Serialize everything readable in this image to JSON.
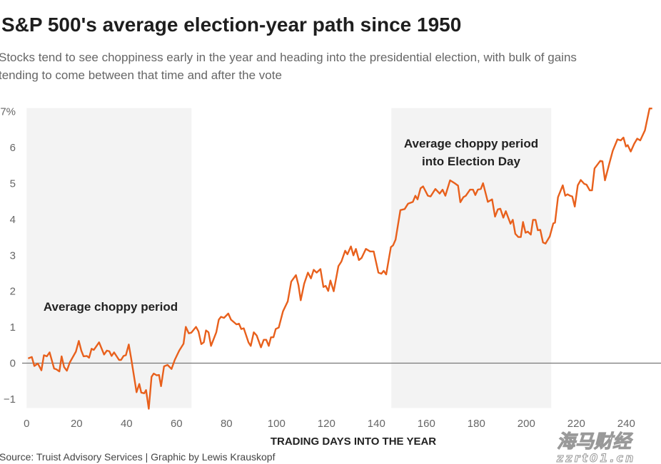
{
  "header": {
    "title": "S&P 500's average election-year path since 1950",
    "subtitle_lines": [
      "Stocks tend to see choppiness early in the year and heading into the presidential election, with bulk of gains",
      "tending to come between that time and after the vote"
    ]
  },
  "footer": {
    "source": "Source: Truist Advisory Services | Graphic by Lewis Krauskopf"
  },
  "watermark": {
    "text": "海马财经",
    "url": "zzrt01.cn"
  },
  "colors": {
    "line": "#e8601c",
    "shade": "#f3f3f3",
    "zero_line": "#777777"
  },
  "chart_data": {
    "type": "line",
    "title": "S&P 500's average election-year path since 1950",
    "xlabel": "TRADING DAYS INTO THE YEAR",
    "ylabel": "",
    "xlim": [
      0,
      252
    ],
    "ylim": [
      -1.25,
      7.1
    ],
    "x_ticks": [
      0,
      20,
      40,
      60,
      80,
      100,
      120,
      140,
      160,
      180,
      200,
      220,
      240
    ],
    "y_ticks": [
      -1,
      0,
      1,
      2,
      3,
      4,
      5,
      6,
      7
    ],
    "y_tick_labels": [
      "−1",
      "0",
      "1",
      "2",
      "3",
      "4",
      "5",
      "6",
      "7%"
    ],
    "grid": false,
    "shaded_regions": [
      {
        "x_start": 0,
        "x_end": 66,
        "label": "Average choppy period"
      },
      {
        "x_start": 146,
        "x_end": 210,
        "label_lines": [
          "Average choppy period",
          "into Election Day"
        ]
      }
    ],
    "x": [
      0.6,
      2.1,
      3.1,
      4.5,
      5.9,
      6.9,
      8.1,
      9.2,
      11,
      11.9,
      13.1,
      14,
      15,
      16.1,
      17.3,
      19.7,
      20.9,
      21.9,
      22.8,
      24.1,
      25,
      26,
      26.9,
      29,
      31,
      32.1,
      33.1,
      34,
      35,
      37,
      37.8,
      38.8,
      39.7,
      40.9,
      41.8,
      44,
      45.1,
      45.9,
      47.1,
      47.8,
      48.9,
      50,
      50.9,
      52.1,
      53,
      53.8,
      55,
      56.4,
      58,
      59.3,
      61.1,
      62.8,
      63.7,
      64.9,
      65.9,
      67.8,
      68.8,
      69.9,
      70.9,
      71.8,
      72.8,
      73.8,
      75.9,
      76.9,
      77.8,
      79,
      80.7,
      81.8,
      82.8,
      84,
      85,
      85.9,
      86.9,
      88.8,
      89.7,
      90.9,
      92.1,
      93.8,
      94.9,
      95.9,
      96.9,
      97.8,
      98.8,
      99.7,
      100.9,
      102.6,
      104.5,
      105.9,
      107.8,
      108.8,
      109.7,
      111.1,
      112.6,
      113.8,
      114.9,
      116.1,
      117.6,
      118.8,
      119.7,
      120.7,
      121.6,
      122.9,
      124.8,
      126,
      127.5,
      128.4,
      129.8,
      130.8,
      131.8,
      133,
      134.1,
      135.8,
      137.5,
      138.9,
      140.8,
      142,
      142.9,
      143.9,
      145.8,
      146.7,
      147.7,
      149.6,
      151.3,
      152.7,
      154.6,
      155.6,
      156.5,
      157.7,
      158.7,
      160.6,
      161.7,
      163.6,
      165.3,
      166.5,
      167.6,
      169.5,
      171.3,
      172.7,
      173.6,
      174.8,
      175.8,
      177.5,
      178.7,
      179.6,
      180.6,
      181.8,
      182.7,
      184.6,
      186.3,
      187.5,
      188.6,
      189.6,
      190.8,
      191.8,
      193.7,
      194.6,
      195.6,
      196.8,
      197.8,
      198.7,
      199.7,
      200.6,
      201.8,
      202.7,
      203.7,
      204.6,
      205.6,
      206.7,
      207.7,
      209.4,
      210.8,
      211.5,
      212.7,
      214.6,
      215.6,
      216.5,
      217.5,
      218.4,
      219.4,
      220.6,
      221.8,
      223.2,
      224.1,
      225.4,
      226.3,
      227.3,
      228.4,
      229.6,
      230.5,
      231.5,
      233.2,
      234.6,
      236.5,
      237.8,
      238.9,
      239.9,
      240.6,
      241.8,
      243.2,
      244.4,
      245.6,
      247.5,
      249.3,
      250.4
    ],
    "y": [
      0.13,
      0.17,
      -0.08,
      -0.01,
      -0.2,
      0.22,
      0.19,
      0.3,
      -0.15,
      -0.17,
      -0.23,
      0.19,
      -0.11,
      -0.21,
      0.02,
      0.32,
      0.62,
      0.35,
      0.19,
      0.2,
      0.15,
      0.4,
      0.37,
      0.58,
      0.24,
      0.35,
      0.33,
      0.2,
      0.3,
      0.09,
      0.09,
      0.2,
      0.22,
      0.52,
      0.15,
      -0.81,
      -0.58,
      -0.82,
      -0.84,
      -0.75,
      -1.27,
      -0.38,
      -0.29,
      -0.34,
      -0.33,
      -0.64,
      -0.09,
      -0.05,
      -0.16,
      0.09,
      0.35,
      0.54,
      1.01,
      0.83,
      0.85,
      1.01,
      0.88,
      0.53,
      0.58,
      0.91,
      0.86,
      0.48,
      0.86,
      1.21,
      1.29,
      1.26,
      1.38,
      1.21,
      1.15,
      1.08,
      1.1,
      0.95,
      0.97,
      0.58,
      0.48,
      0.86,
      0.77,
      0.44,
      0.65,
      0.65,
      0.48,
      0.72,
      0.72,
      0.95,
      0.99,
      1.44,
      1.72,
      2.27,
      2.45,
      2.17,
      1.75,
      2.21,
      2.52,
      2.36,
      2.6,
      2.52,
      2.62,
      2.12,
      2.15,
      2.01,
      2.3,
      2.0,
      2.7,
      2.83,
      3.13,
      3.03,
      3.25,
      3.0,
      3.18,
      2.87,
      2.93,
      3.18,
      3.11,
      3.11,
      2.52,
      2.49,
      2.57,
      2.47,
      3.23,
      3.28,
      3.44,
      4.26,
      4.29,
      4.44,
      4.49,
      4.66,
      4.56,
      4.87,
      4.92,
      4.66,
      4.64,
      4.85,
      4.72,
      4.83,
      4.66,
      5.09,
      5.01,
      4.94,
      4.48,
      4.62,
      4.66,
      4.83,
      4.83,
      4.68,
      4.83,
      4.85,
      5.01,
      4.49,
      4.56,
      4.08,
      4.28,
      4.3,
      4.05,
      4.23,
      3.88,
      3.99,
      3.6,
      3.51,
      3.51,
      3.93,
      3.63,
      3.66,
      3.58,
      3.99,
      3.99,
      3.7,
      3.71,
      3.36,
      3.33,
      3.53,
      3.89,
      3.91,
      4.62,
      4.95,
      4.66,
      4.7,
      4.66,
      4.64,
      4.36,
      4.95,
      5.1,
      4.99,
      4.97,
      4.81,
      4.81,
      5.42,
      5.52,
      5.63,
      5.62,
      5.09,
      5.55,
      5.91,
      6.23,
      6.2,
      6.28,
      6.03,
      6.07,
      5.89,
      6.11,
      6.25,
      6.2,
      6.48,
      7.09,
      7.09
    ]
  }
}
